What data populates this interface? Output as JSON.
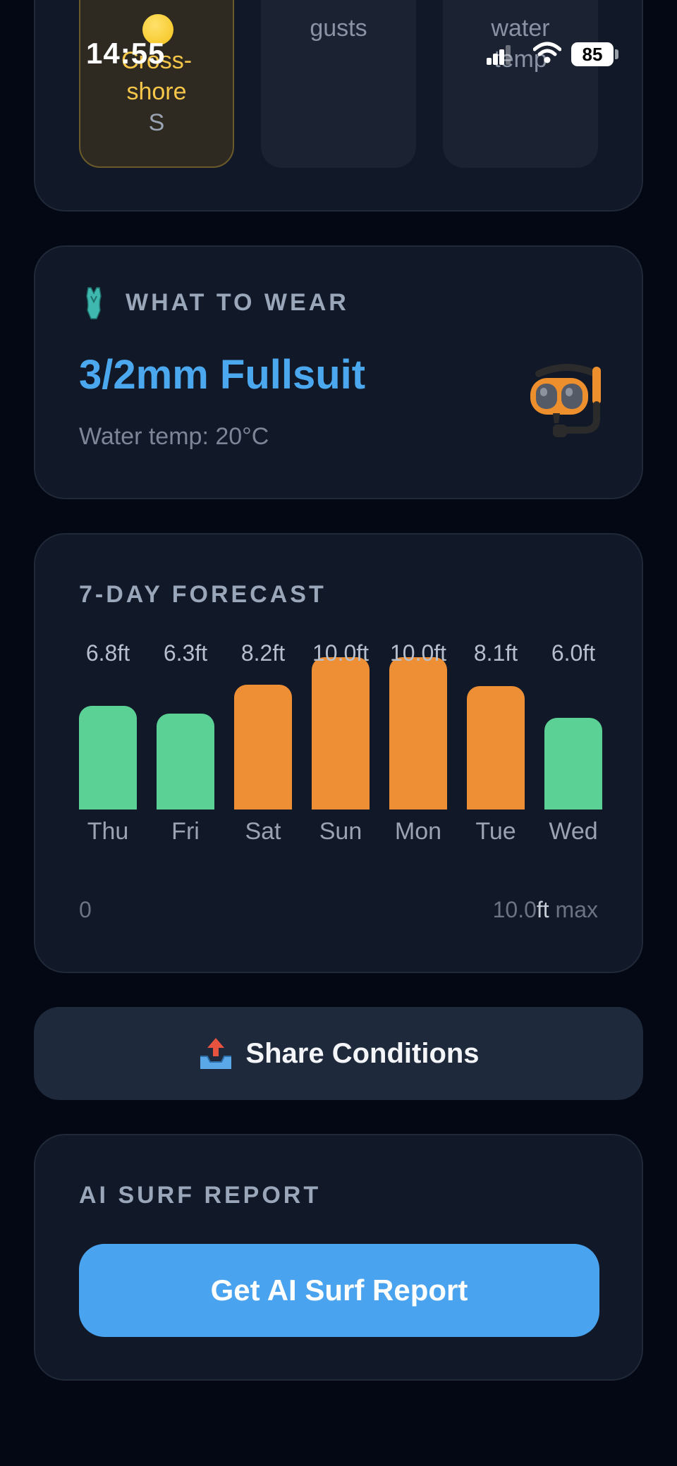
{
  "status_bar": {
    "time": "14:55",
    "battery": "85",
    "icons": [
      "signal-icon",
      "wifi-icon",
      "battery-icon"
    ]
  },
  "top_tiles": {
    "wind": {
      "icon": "sun-icon",
      "line1": "Cross-",
      "line2": "shore",
      "direction": "S"
    },
    "gusts": {
      "label": "gusts"
    },
    "water": {
      "label1": "water",
      "label2": "temp"
    }
  },
  "wear": {
    "icon": "wetsuit-icon",
    "title": "WHAT TO WEAR",
    "suit": "3/2mm Fullsuit",
    "water_temp": "Water temp: 20°C",
    "image_icon": "snorkel-mask-icon"
  },
  "forecast": {
    "title": "7-DAY FORECAST",
    "axis_min": "0",
    "axis_max_value": "10.0",
    "axis_max_unit": "ft",
    "axis_max_suffix": " max",
    "colors": {
      "small": "#5cd196",
      "large": "#ee8f36"
    }
  },
  "chart_data": {
    "type": "bar",
    "categories": [
      "Thu",
      "Fri",
      "Sat",
      "Sun",
      "Mon",
      "Tue",
      "Wed"
    ],
    "values": [
      6.8,
      6.3,
      8.2,
      10.0,
      10.0,
      8.1,
      6.0
    ],
    "value_labels": [
      "6.8ft",
      "6.3ft",
      "8.2ft",
      "10.0ft",
      "10.0ft",
      "8.1ft",
      "6.0ft"
    ],
    "bar_colors": [
      "#5cd196",
      "#5cd196",
      "#ee8f36",
      "#ee8f36",
      "#ee8f36",
      "#ee8f36",
      "#5cd196"
    ],
    "ylim": [
      0,
      10.0
    ],
    "title": "7-DAY FORECAST",
    "xlabel": "",
    "ylabel": ""
  },
  "share": {
    "icon": "outbox-tray-icon",
    "label": "Share Conditions"
  },
  "ai": {
    "title": "AI SURF REPORT",
    "button_label": "Get AI Surf Report"
  }
}
